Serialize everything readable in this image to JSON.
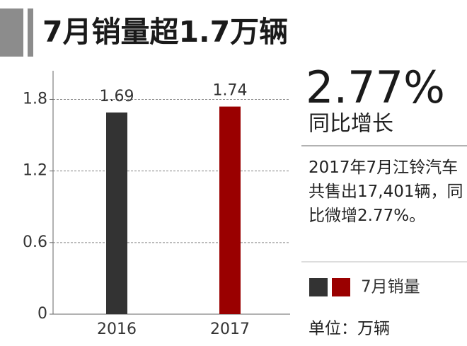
{
  "chart_data": {
    "type": "bar",
    "title": "7月销量超1.7万辆",
    "highlight": "2.77%",
    "highlight_label": "同比增长",
    "description": "2017年7月江铃汽车共售出17,401辆，同比微增2.77%。",
    "unit": "单位：万辆",
    "categories": [
      "2016",
      "2017"
    ],
    "series": [
      {
        "name": "7月销量",
        "colors": [
          "#333333",
          "#9a0000"
        ],
        "values": [
          1.69,
          1.74
        ]
      }
    ],
    "ylim": [
      0,
      2.04
    ],
    "yticks": [
      0,
      0.6,
      1.2,
      1.8
    ],
    "grid": true
  }
}
